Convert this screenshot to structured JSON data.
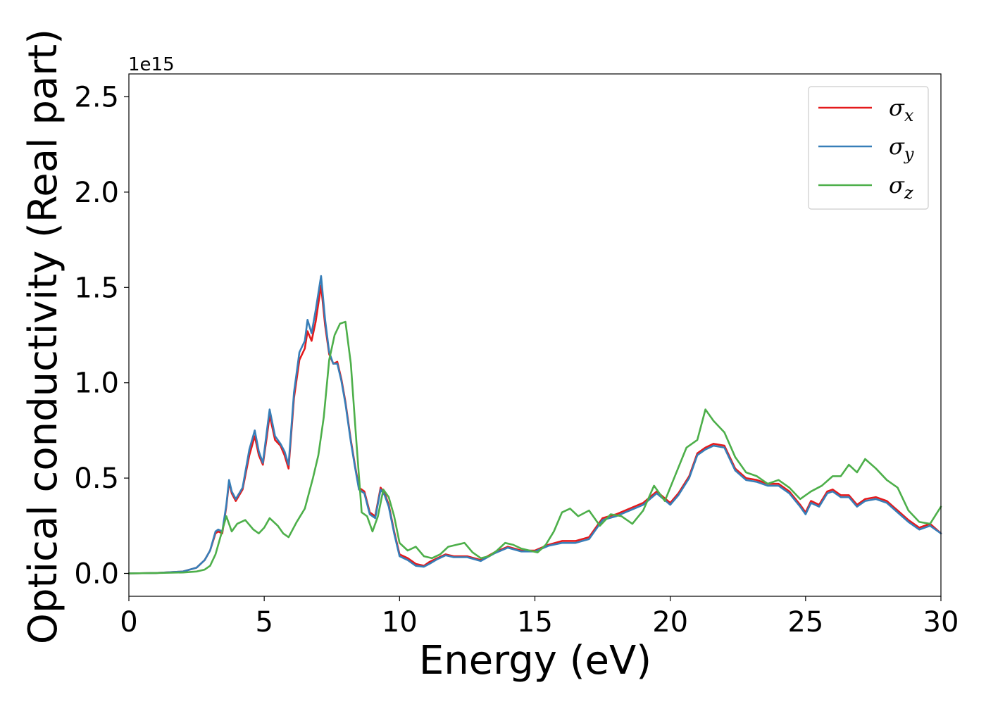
{
  "chart_data": {
    "type": "line",
    "title": "",
    "xlabel": "Energy (eV)",
    "ylabel": "Optical conductivity (Real part)",
    "y_offset_text": "1e15",
    "y_scale": 1000000000000000.0,
    "xlim": [
      0,
      30
    ],
    "ylim": [
      -0.12,
      2.62
    ],
    "xticks": [
      0,
      5,
      10,
      15,
      20,
      25,
      30
    ],
    "xtick_labels": [
      "0",
      "5",
      "10",
      "15",
      "20",
      "25",
      "30"
    ],
    "yticks": [
      0.0,
      0.5,
      1.0,
      1.5,
      2.0,
      2.5
    ],
    "ytick_labels": [
      "0.0",
      "0.5",
      "1.0",
      "1.5",
      "2.0",
      "2.5"
    ],
    "grid": false,
    "legend": {
      "placement": "top-right",
      "entries": [
        {
          "symbol": "σ",
          "sub": "x"
        },
        {
          "symbol": "σ",
          "sub": "y"
        },
        {
          "symbol": "σ",
          "sub": "z"
        }
      ]
    },
    "series": [
      {
        "color": "#e41a1c",
        "x": [
          0,
          1,
          2,
          2.5,
          2.8,
          3.0,
          3.2,
          3.3,
          3.45,
          3.6,
          3.7,
          3.8,
          3.95,
          4.2,
          4.45,
          4.65,
          4.8,
          4.95,
          5.1,
          5.2,
          5.4,
          5.6,
          5.75,
          5.9,
          6.1,
          6.3,
          6.5,
          6.6,
          6.75,
          6.9,
          7.1,
          7.25,
          7.4,
          7.55,
          7.7,
          7.85,
          8.0,
          8.2,
          8.35,
          8.5,
          8.7,
          8.9,
          9.1,
          9.3,
          9.45,
          9.6,
          9.8,
          10.0,
          10.3,
          10.6,
          10.9,
          11.1,
          11.4,
          11.7,
          12.0,
          12.5,
          13.0,
          13.5,
          14.0,
          14.5,
          15.0,
          15.5,
          16.0,
          16.5,
          17.0,
          17.5,
          18.0,
          18.5,
          19.0,
          19.5,
          20.0,
          20.3,
          20.7,
          21.0,
          21.3,
          21.6,
          22.0,
          22.4,
          22.8,
          23.2,
          23.6,
          24.0,
          24.4,
          24.8,
          25.0,
          25.2,
          25.5,
          25.8,
          26.0,
          26.3,
          26.6,
          26.9,
          27.2,
          27.6,
          28.0,
          28.4,
          28.8,
          29.2,
          29.6,
          30.0
        ],
        "y": [
          0.0,
          0.002,
          0.01,
          0.03,
          0.07,
          0.12,
          0.21,
          0.22,
          0.21,
          0.35,
          0.48,
          0.42,
          0.38,
          0.44,
          0.62,
          0.72,
          0.62,
          0.57,
          0.72,
          0.83,
          0.7,
          0.67,
          0.62,
          0.55,
          0.92,
          1.12,
          1.18,
          1.27,
          1.22,
          1.32,
          1.51,
          1.3,
          1.15,
          1.1,
          1.11,
          1.02,
          0.9,
          0.7,
          0.57,
          0.45,
          0.43,
          0.32,
          0.3,
          0.45,
          0.42,
          0.36,
          0.22,
          0.1,
          0.08,
          0.05,
          0.04,
          0.06,
          0.08,
          0.1,
          0.09,
          0.09,
          0.07,
          0.11,
          0.14,
          0.12,
          0.12,
          0.15,
          0.17,
          0.17,
          0.19,
          0.29,
          0.31,
          0.34,
          0.37,
          0.43,
          0.37,
          0.42,
          0.51,
          0.63,
          0.66,
          0.68,
          0.67,
          0.55,
          0.5,
          0.49,
          0.47,
          0.47,
          0.43,
          0.36,
          0.32,
          0.38,
          0.36,
          0.43,
          0.44,
          0.41,
          0.41,
          0.36,
          0.39,
          0.4,
          0.38,
          0.33,
          0.28,
          0.24,
          0.26,
          0.21
        ]
      },
      {
        "color": "#377eb8",
        "x": [
          0,
          1,
          2,
          2.5,
          2.8,
          3.0,
          3.2,
          3.3,
          3.45,
          3.6,
          3.7,
          3.8,
          3.95,
          4.2,
          4.45,
          4.65,
          4.8,
          4.95,
          5.1,
          5.2,
          5.4,
          5.6,
          5.75,
          5.9,
          6.1,
          6.3,
          6.5,
          6.6,
          6.75,
          6.9,
          7.1,
          7.25,
          7.4,
          7.55,
          7.7,
          7.85,
          8.0,
          8.2,
          8.35,
          8.5,
          8.7,
          8.9,
          9.1,
          9.3,
          9.45,
          9.6,
          9.8,
          10.0,
          10.3,
          10.6,
          10.9,
          11.1,
          11.4,
          11.7,
          12.0,
          12.5,
          13.0,
          13.5,
          14.0,
          14.5,
          15.0,
          15.5,
          16.0,
          16.5,
          17.0,
          17.5,
          18.0,
          18.5,
          19.0,
          19.5,
          20.0,
          20.3,
          20.7,
          21.0,
          21.3,
          21.6,
          22.0,
          22.4,
          22.8,
          23.2,
          23.6,
          24.0,
          24.4,
          24.8,
          25.0,
          25.2,
          25.5,
          25.8,
          26.0,
          26.3,
          26.6,
          26.9,
          27.2,
          27.6,
          28.0,
          28.4,
          28.8,
          29.2,
          29.6,
          30.0
        ],
        "y": [
          0.0,
          0.002,
          0.01,
          0.03,
          0.07,
          0.12,
          0.22,
          0.23,
          0.22,
          0.36,
          0.49,
          0.43,
          0.39,
          0.45,
          0.65,
          0.75,
          0.64,
          0.58,
          0.75,
          0.86,
          0.72,
          0.68,
          0.64,
          0.57,
          0.95,
          1.16,
          1.22,
          1.33,
          1.26,
          1.38,
          1.56,
          1.33,
          1.16,
          1.1,
          1.1,
          1.01,
          0.89,
          0.69,
          0.56,
          0.44,
          0.42,
          0.31,
          0.29,
          0.44,
          0.41,
          0.35,
          0.21,
          0.09,
          0.07,
          0.04,
          0.035,
          0.05,
          0.075,
          0.095,
          0.085,
          0.085,
          0.065,
          0.105,
          0.135,
          0.115,
          0.115,
          0.145,
          0.16,
          0.16,
          0.18,
          0.28,
          0.3,
          0.33,
          0.36,
          0.42,
          0.36,
          0.41,
          0.5,
          0.62,
          0.65,
          0.67,
          0.66,
          0.54,
          0.49,
          0.48,
          0.46,
          0.46,
          0.42,
          0.35,
          0.31,
          0.37,
          0.35,
          0.42,
          0.43,
          0.4,
          0.4,
          0.35,
          0.38,
          0.39,
          0.37,
          0.32,
          0.27,
          0.23,
          0.25,
          0.21
        ]
      },
      {
        "color": "#4daf4a",
        "x": [
          0,
          1,
          2,
          2.5,
          2.8,
          3.0,
          3.2,
          3.4,
          3.6,
          3.8,
          4.0,
          4.3,
          4.6,
          4.8,
          5.0,
          5.2,
          5.5,
          5.7,
          5.9,
          6.2,
          6.5,
          6.8,
          7.0,
          7.2,
          7.4,
          7.6,
          7.8,
          8.0,
          8.2,
          8.4,
          8.6,
          8.8,
          9.0,
          9.2,
          9.4,
          9.6,
          9.8,
          10.0,
          10.3,
          10.6,
          10.9,
          11.2,
          11.5,
          11.8,
          12.1,
          12.4,
          12.7,
          13.0,
          13.3,
          13.6,
          13.9,
          14.2,
          14.5,
          14.8,
          15.1,
          15.4,
          15.7,
          16.0,
          16.3,
          16.6,
          17.0,
          17.4,
          17.8,
          18.2,
          18.6,
          19.0,
          19.4,
          19.8,
          20.2,
          20.6,
          21.0,
          21.3,
          21.6,
          22.0,
          22.4,
          22.8,
          23.2,
          23.6,
          24.0,
          24.4,
          24.8,
          25.2,
          25.6,
          26.0,
          26.3,
          26.6,
          26.9,
          27.2,
          27.6,
          28.0,
          28.4,
          28.8,
          29.2,
          29.6,
          30.0
        ],
        "y": [
          0.0,
          0.002,
          0.005,
          0.01,
          0.02,
          0.04,
          0.1,
          0.2,
          0.3,
          0.22,
          0.26,
          0.28,
          0.23,
          0.21,
          0.24,
          0.29,
          0.25,
          0.21,
          0.19,
          0.27,
          0.34,
          0.5,
          0.62,
          0.82,
          1.12,
          1.25,
          1.31,
          1.32,
          1.1,
          0.7,
          0.32,
          0.3,
          0.22,
          0.3,
          0.44,
          0.4,
          0.3,
          0.16,
          0.12,
          0.14,
          0.09,
          0.08,
          0.1,
          0.14,
          0.15,
          0.16,
          0.11,
          0.08,
          0.09,
          0.12,
          0.16,
          0.15,
          0.13,
          0.12,
          0.11,
          0.15,
          0.22,
          0.32,
          0.34,
          0.3,
          0.33,
          0.25,
          0.31,
          0.3,
          0.26,
          0.33,
          0.46,
          0.38,
          0.52,
          0.66,
          0.7,
          0.86,
          0.8,
          0.74,
          0.61,
          0.53,
          0.51,
          0.47,
          0.49,
          0.45,
          0.39,
          0.43,
          0.46,
          0.51,
          0.51,
          0.57,
          0.53,
          0.6,
          0.55,
          0.49,
          0.45,
          0.33,
          0.27,
          0.26,
          0.35
        ]
      }
    ]
  }
}
